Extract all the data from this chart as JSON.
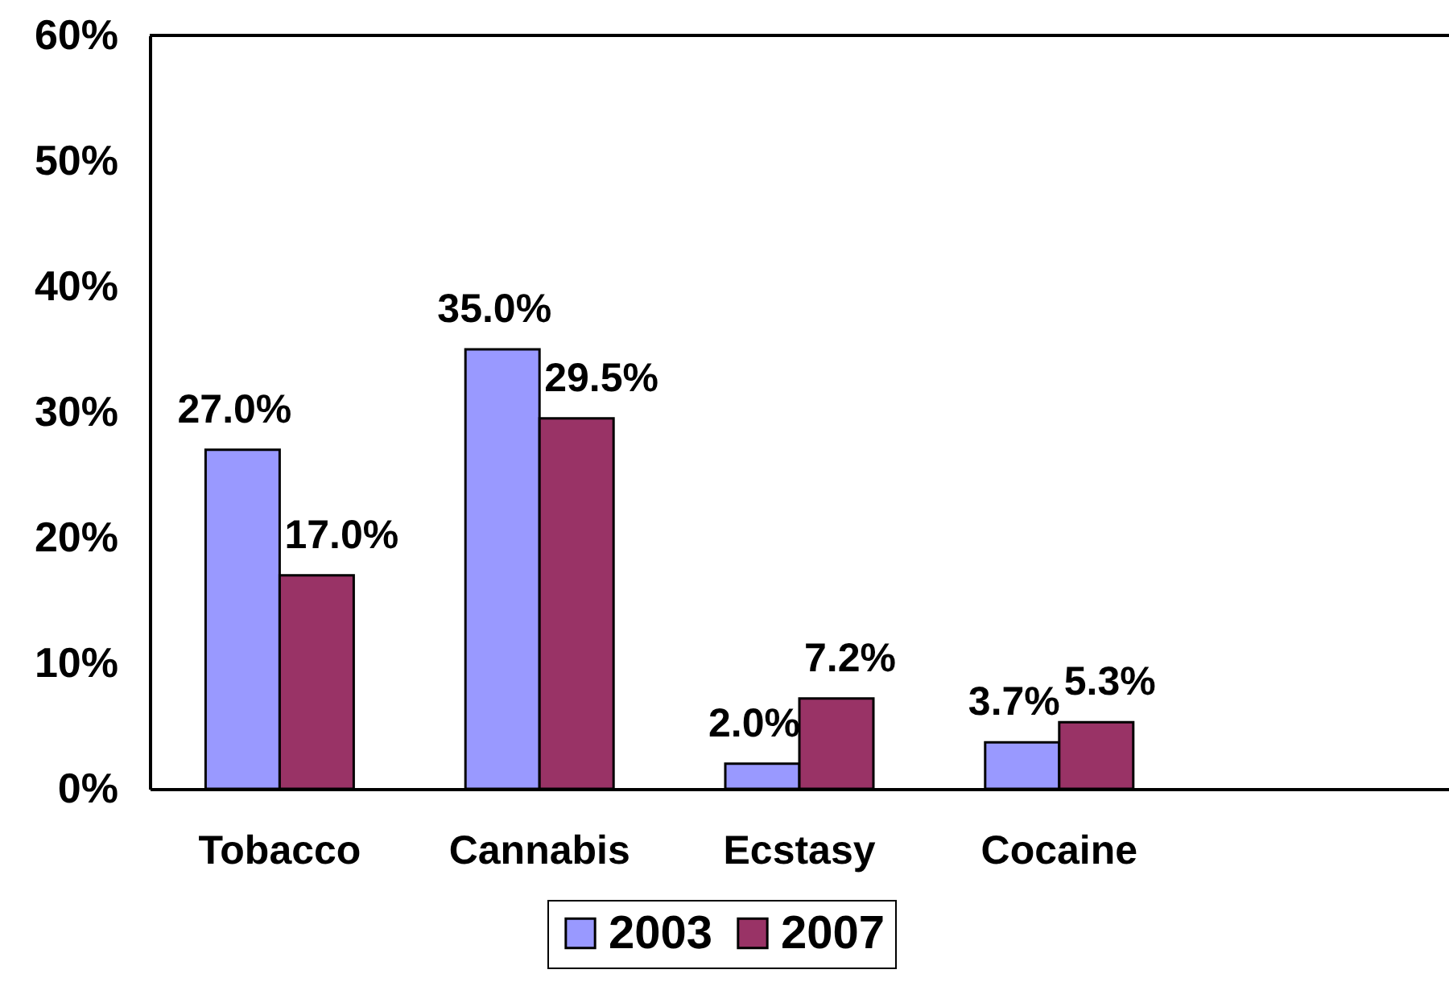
{
  "chart_data": {
    "type": "bar",
    "categories": [
      "Tobacco",
      "Cannabis",
      "Ecstasy",
      "Cocaine",
      null
    ],
    "series": [
      {
        "name": "2003",
        "color": "#9999ff",
        "values": [
          27.0,
          35.0,
          2.0,
          3.7,
          null
        ],
        "value_labels": [
          "27.0%",
          "35.0%",
          "2.0%",
          "3.7%",
          null
        ]
      },
      {
        "name": "2007",
        "color": "#993366",
        "values": [
          17.0,
          29.5,
          7.2,
          5.3,
          null
        ],
        "value_labels": [
          "17.0%",
          "29.5%",
          "7.2%",
          "5.3%",
          null
        ]
      }
    ],
    "ylim": [
      0,
      60
    ],
    "yticks": [
      {
        "value": 0,
        "label": "0%"
      },
      {
        "value": 10,
        "label": "10%"
      },
      {
        "value": 20,
        "label": "20%"
      },
      {
        "value": 30,
        "label": "30%"
      },
      {
        "value": 40,
        "label": "40%"
      },
      {
        "value": 50,
        "label": "50%"
      },
      {
        "value": 60,
        "label": "60%"
      }
    ],
    "grid": false,
    "legend": "bottom"
  }
}
